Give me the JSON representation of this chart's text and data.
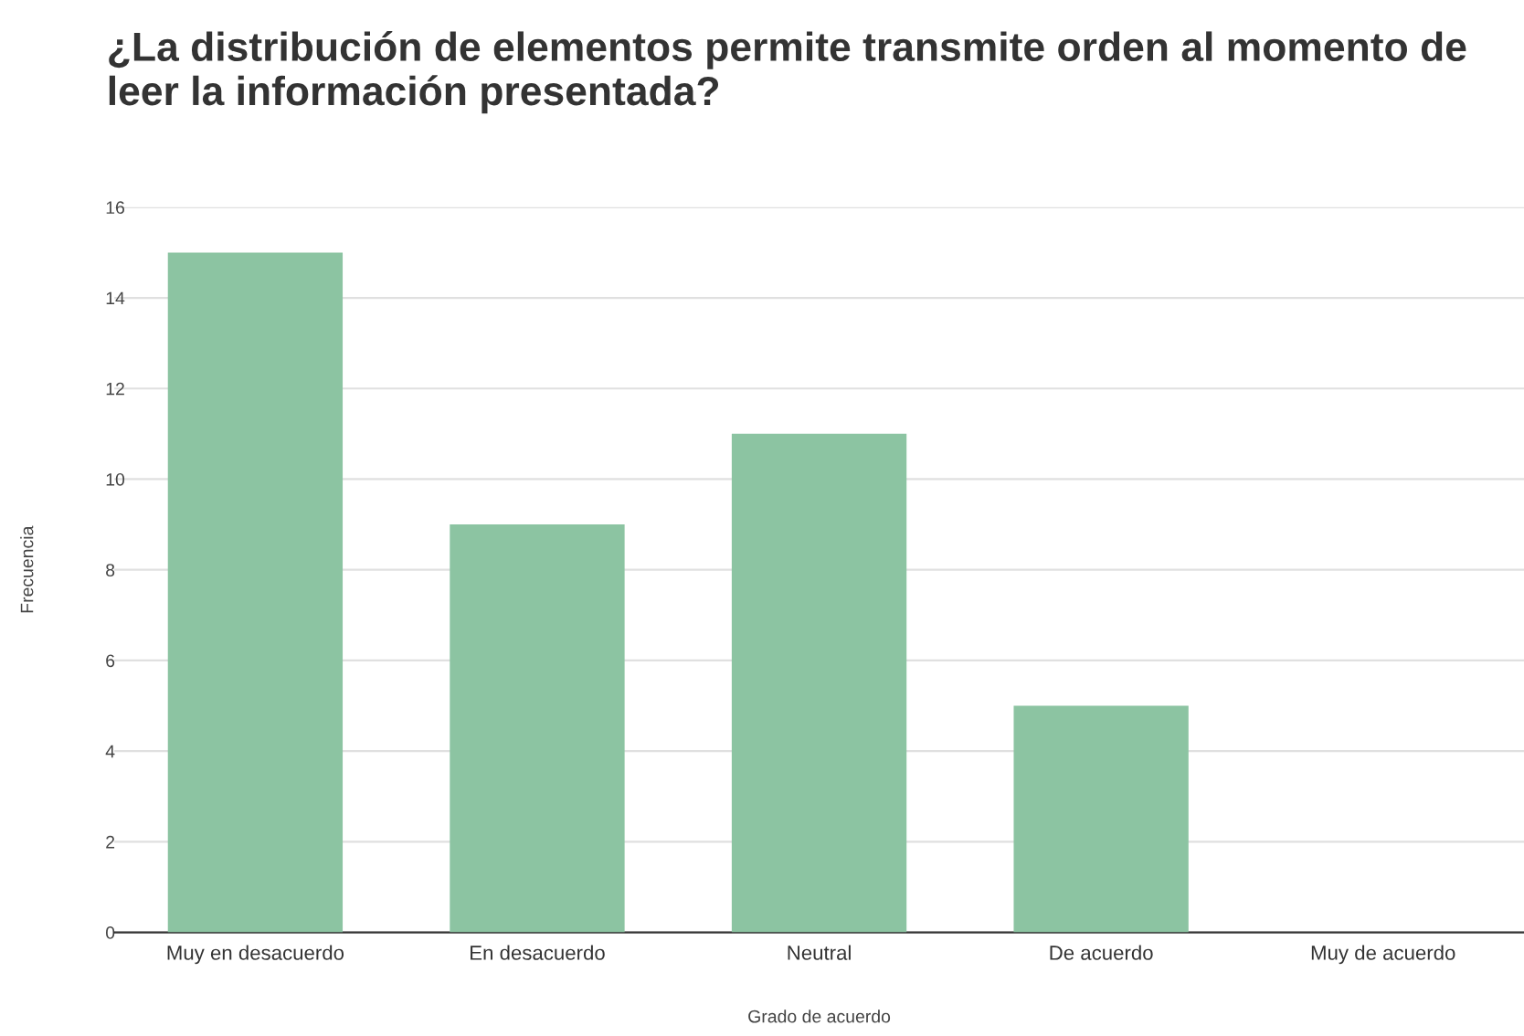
{
  "chart_data": {
    "type": "bar",
    "title": "¿La distribución de elementos permite transmite orden al momento de leer la información presentada?",
    "xlabel": "Grado de acuerdo",
    "ylabel": "Frecuencia",
    "categories": [
      "Muy en desacuerdo",
      "En desacuerdo",
      "Neutral",
      "De acuerdo",
      "Muy de acuerdo"
    ],
    "values": [
      15,
      9,
      11,
      5,
      0
    ],
    "color": "#8cc4a2",
    "ylim": [
      0,
      16
    ],
    "yticks": [
      0,
      2,
      4,
      6,
      8,
      10,
      12,
      14,
      16
    ],
    "grid": "y",
    "legend": false
  }
}
